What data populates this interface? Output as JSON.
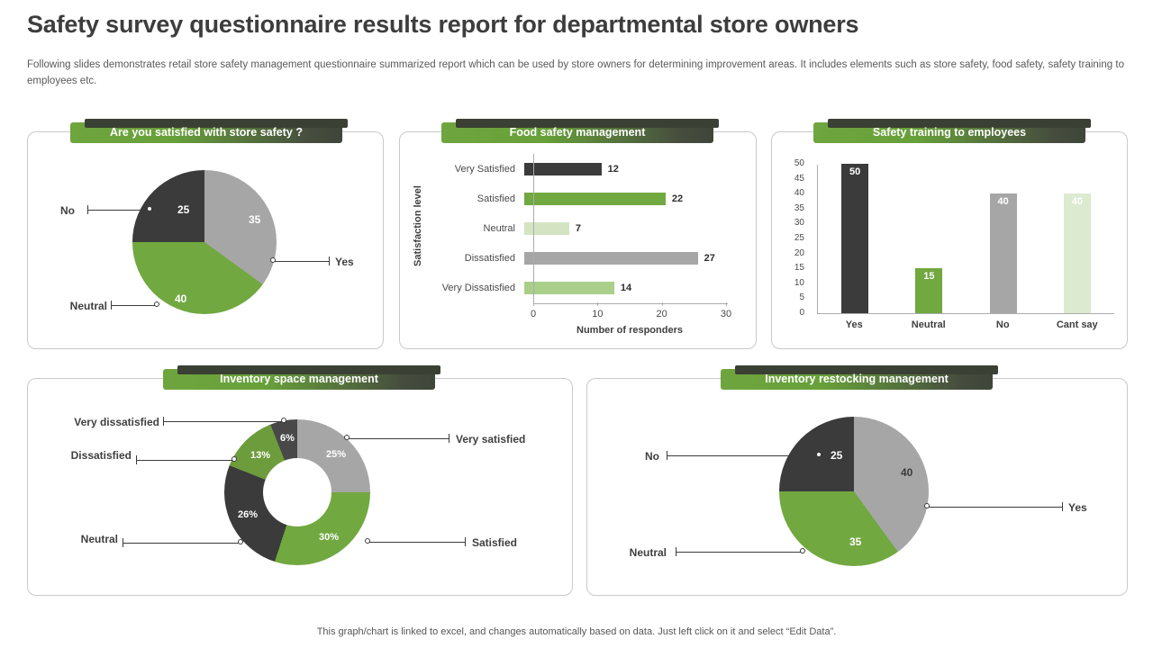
{
  "slide": {
    "title": "Safety survey questionnaire results report for departmental store owners",
    "subtitle": "Following slides demonstrates retail store safety management questionnaire summarized report which can be used by store owners for determining improvement areas. It includes elements such as store safety, food safety, safety training to employees etc.",
    "footer": "This graph/chart is linked to excel, and changes automatically based on data. Just left click on it and select “Edit Data”."
  },
  "colors": {
    "dark": "#3b3b3b",
    "green": "#71a840",
    "gray": "#a6a6a6",
    "light_green": "#d4e4c2",
    "mid_green": "#a9cf8a",
    "pale_green": "#dcead0",
    "banner_green": "#6fa53e",
    "banner_dark": "#3f463a"
  },
  "chart_data": [
    {
      "id": "store-safety",
      "type": "pie",
      "title": "Are you satisfied with store safety ?",
      "legend_position": "callout-labels",
      "slices": [
        {
          "label": "Yes",
          "value": 35,
          "value_label": "35",
          "color": "#a6a6a6"
        },
        {
          "label": "Neutral",
          "value": 40,
          "value_label": "40",
          "color": "#71a840"
        },
        {
          "label": "No",
          "value": 25,
          "value_label": "25",
          "color": "#3b3b3b"
        }
      ]
    },
    {
      "id": "food-safety",
      "type": "bar",
      "orientation": "horizontal",
      "title": "Food safety management",
      "xlabel": "Number of responders",
      "ylabel": "Satisfaction level",
      "xlim": [
        0,
        30
      ],
      "xticks": [
        "0",
        "10",
        "20",
        "30"
      ],
      "grid": false,
      "bars": [
        {
          "label": "Very Satisfied",
          "value": 12,
          "color": "#3b3b3b"
        },
        {
          "label": "Satisfied",
          "value": 22,
          "color": "#71a840"
        },
        {
          "label": "Neutral",
          "value": 7,
          "color": "#d4e4c2"
        },
        {
          "label": "Dissatisfied",
          "value": 27,
          "color": "#a6a6a6"
        },
        {
          "label": "Very Dissatisfied",
          "value": 14,
          "color": "#a9cf8a"
        }
      ]
    },
    {
      "id": "safety-training",
      "type": "bar",
      "orientation": "vertical",
      "title": "Safety training to employees",
      "ylim": [
        0,
        50
      ],
      "yticks": [
        0,
        5,
        10,
        15,
        20,
        25,
        30,
        35,
        40,
        45,
        50
      ],
      "grid": false,
      "bars": [
        {
          "label": "Yes",
          "value": 50,
          "color": "#3b3b3b"
        },
        {
          "label": "Neutral",
          "value": 15,
          "color": "#71a840"
        },
        {
          "label": "No",
          "value": 40,
          "color": "#a6a6a6"
        },
        {
          "label": "Cant say",
          "value": 40,
          "color": "#dcead0"
        }
      ]
    },
    {
      "id": "inventory-space",
      "type": "donut",
      "title": "Inventory space management",
      "legend_position": "callout-labels",
      "slices": [
        {
          "label": "Very satisfied",
          "value": 25,
          "value_label": "25%",
          "color": "#a6a6a6"
        },
        {
          "label": "Satisfied",
          "value": 30,
          "value_label": "30%",
          "color": "#71a840"
        },
        {
          "label": "Neutral",
          "value": 26,
          "value_label": "26%",
          "color": "#3b3b3b"
        },
        {
          "label": "Dissatisfied",
          "value": 13,
          "value_label": "13%",
          "color": "#6d9c3c"
        },
        {
          "label": "Very dissatisfied",
          "value": 6,
          "value_label": "6%",
          "color": "#484848"
        }
      ]
    },
    {
      "id": "inventory-restocking",
      "type": "pie",
      "title": "Inventory restocking management",
      "legend_position": "callout-labels",
      "slices": [
        {
          "label": "Yes",
          "value": 40,
          "value_label": "40",
          "color": "#a6a6a6"
        },
        {
          "label": "Neutral",
          "value": 35,
          "value_label": "35",
          "color": "#71a840"
        },
        {
          "label": "No",
          "value": 25,
          "value_label": "25",
          "color": "#3b3b3b"
        }
      ]
    }
  ]
}
